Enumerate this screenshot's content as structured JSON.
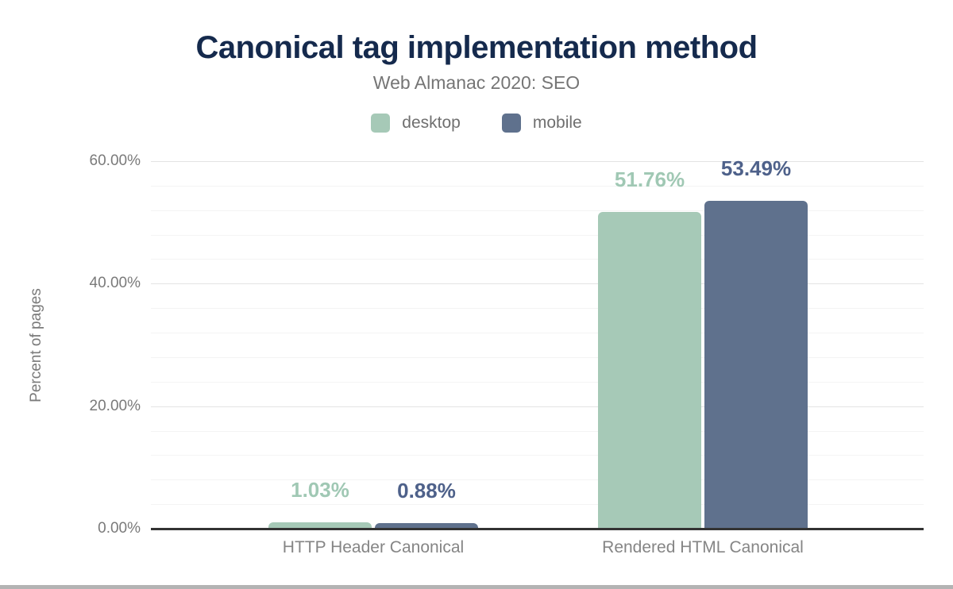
{
  "chart_data": {
    "type": "bar",
    "title": "Canonical tag implementation method",
    "subtitle": "Web Almanac 2020: SEO",
    "ylabel": "Percent of pages",
    "categories": [
      "HTTP Header Canonical",
      "Rendered HTML Canonical"
    ],
    "series": [
      {
        "name": "desktop",
        "color": "#a6c9b7",
        "label_color": "#a0c8b4",
        "values": [
          1.03,
          51.76
        ],
        "value_labels": [
          "1.03%",
          "51.76%"
        ]
      },
      {
        "name": "mobile",
        "color": "#5f718d",
        "label_color": "#4e618a",
        "values": [
          0.88,
          53.49
        ],
        "value_labels": [
          "0.88%",
          "53.49%"
        ]
      }
    ],
    "y_axis": {
      "min": 0,
      "max": 60,
      "major_step": 20,
      "minor_step": 4,
      "tick_labels": [
        "0.00%",
        "20.00%",
        "40.00%",
        "60.00%"
      ]
    },
    "legend_position": "top",
    "grid_on": true,
    "colors": {
      "title": "#152a4d",
      "subtitle_text": "#757575",
      "axis_text": "#7a7a7a",
      "major_grid": "#e3e3e3",
      "minor_grid": "#f4f4f4",
      "axis_line": "#333333"
    }
  },
  "footer": {
    "border_color": "#b3b3b3"
  }
}
